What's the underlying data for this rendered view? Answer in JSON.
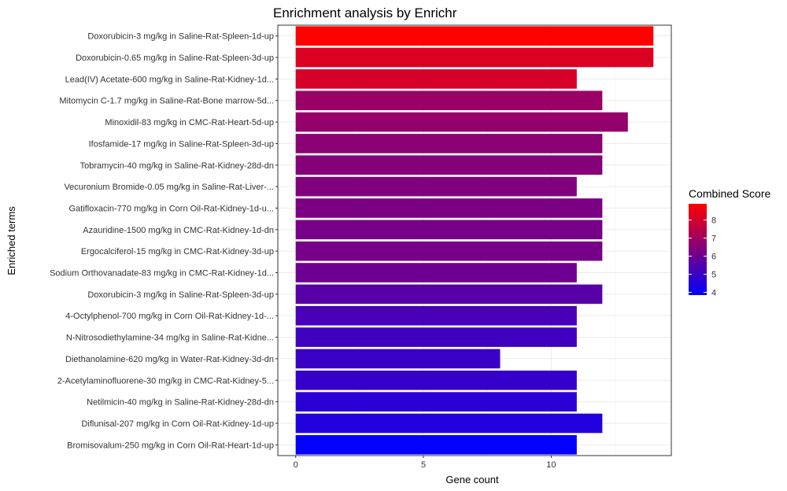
{
  "chart_data": {
    "type": "bar",
    "orientation": "horizontal",
    "title": "Enrichment analysis by Enrichr",
    "xlabel": "Gene count",
    "ylabel": "Enriched terms",
    "xlim": [
      -0.7,
      14.7
    ],
    "xticks": [
      0,
      5,
      10
    ],
    "grid": true,
    "legend": {
      "title": "Combined Score",
      "placement": "right",
      "min": 3.85,
      "max": 8.9,
      "ticks": [
        4,
        5,
        6,
        7,
        8
      ],
      "low_color": "#0000FF",
      "high_color": "#FF0000"
    },
    "categories": [
      "Doxorubicin-3 mg/kg in Saline-Rat-Spleen-1d-up",
      "Doxorubicin-0.65 mg/kg in Saline-Rat-Spleen-3d-up",
      "Lead(IV) Acetate-600 mg/kg in Saline-Rat-Kidney-1d...",
      "Mitomycin C-1.7 mg/kg in Saline-Rat-Bone marrow-5d...",
      "Minoxidil-83 mg/kg in CMC-Rat-Heart-5d-up",
      "Ifosfamide-17 mg/kg in Saline-Rat-Spleen-3d-up",
      "Tobramycin-40 mg/kg in Saline-Rat-Kidney-28d-dn",
      "Vecuronium Bromide-0.05 mg/kg in Saline-Rat-Liver-...",
      "Gatifloxacin-770 mg/kg in Corn Oil-Rat-Kidney-1d-u...",
      "Azauridine-1500 mg/kg in CMC-Rat-Kidney-1d-dn",
      "Ergocalciferol-15 mg/kg in CMC-Rat-Kidney-3d-up",
      "Sodium Orthovanadate-83 mg/kg in CMC-Rat-Kidney-1d...",
      "Doxorubicin-3 mg/kg in Saline-Rat-Spleen-3d-up",
      "4-Octylphenol-700 mg/kg in Corn Oil-Rat-Kidney-1d-...",
      "N-Nitrosodiethylamine-34 mg/kg in Saline-Rat-Kidne...",
      "Diethanolamine-620 mg/kg in Water-Rat-Kidney-3d-dn",
      "2-Acetylaminofluorene-30 mg/kg in CMC-Rat-Kidney-5...",
      "Netilmicin-40 mg/kg in Saline-Rat-Kidney-28d-dn",
      "Diflunisal-207 mg/kg in Corn Oil-Rat-Kidney-1d-up",
      "Bromisovalum-250 mg/kg in Corn Oil-Rat-Heart-1d-up"
    ],
    "values": [
      14,
      14,
      11,
      12,
      13,
      12,
      12,
      11,
      12,
      12,
      12,
      11,
      12,
      11,
      11,
      8,
      11,
      11,
      12,
      11
    ],
    "combined_score": [
      8.9,
      8.2,
      8.1,
      6.9,
      6.8,
      6.6,
      6.5,
      6.4,
      6.3,
      6.2,
      6.2,
      6.0,
      5.6,
      5.3,
      5.1,
      5.0,
      4.9,
      4.7,
      4.5,
      3.9
    ]
  }
}
